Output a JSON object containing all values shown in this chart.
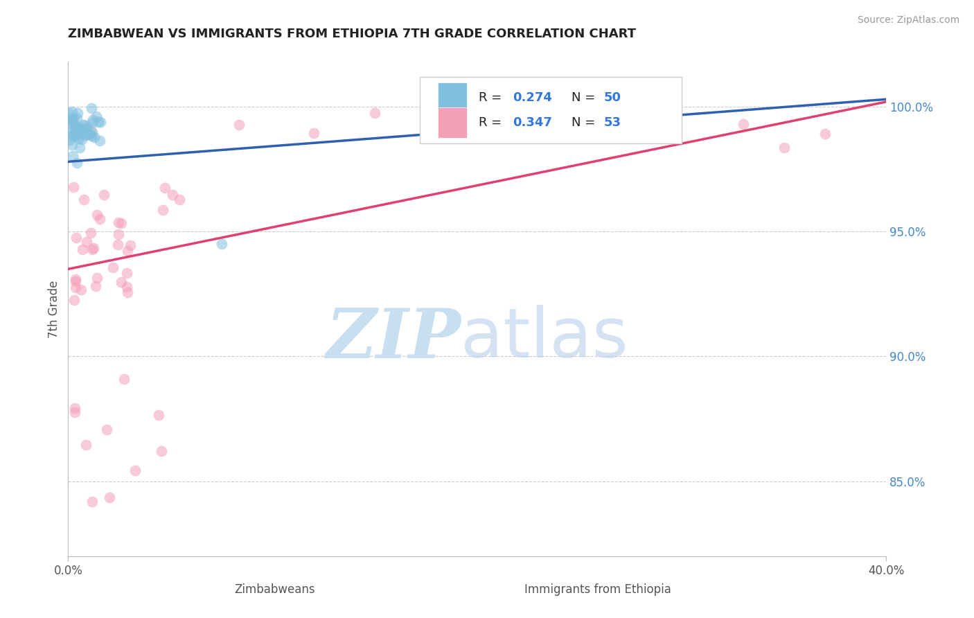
{
  "title": "ZIMBABWEAN VS IMMIGRANTS FROM ETHIOPIA 7TH GRADE CORRELATION CHART",
  "source": "Source: ZipAtlas.com",
  "ylabel": "7th Grade",
  "xmin": 0.0,
  "xmax": 40.0,
  "ymin": 82.0,
  "ymax": 101.8,
  "right_ytick_labels": [
    "85.0%",
    "90.0%",
    "95.0%",
    "100.0%"
  ],
  "right_ytick_values": [
    85.0,
    90.0,
    95.0,
    100.0
  ],
  "blue_color": "#7fbfdf",
  "pink_color": "#f4a0b8",
  "blue_line_color": "#3060b0",
  "pink_line_color": "#e04070",
  "legend_r_blue": "0.274",
  "legend_n_blue": "50",
  "legend_r_pink": "0.347",
  "legend_n_pink": "53",
  "watermark_zip": "ZIP",
  "watermark_atlas": "atlas",
  "bottom_label_left": "Zimbabweans",
  "bottom_label_right": "Immigrants from Ethiopia",
  "grid_color": "#cccccc",
  "background_color": "#ffffff",
  "title_color": "#222222"
}
